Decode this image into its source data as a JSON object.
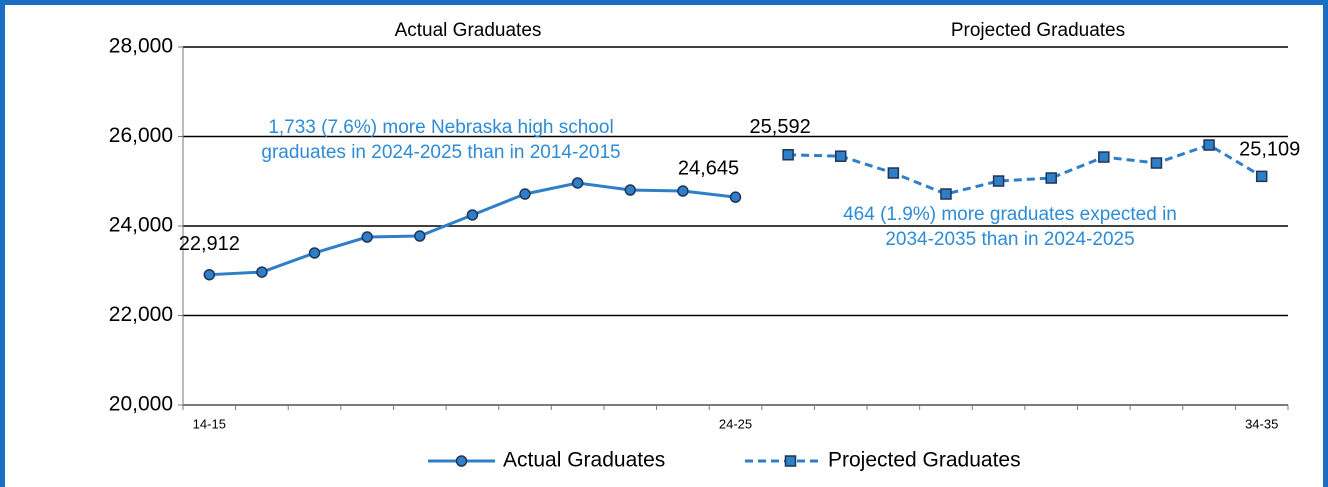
{
  "chart_data": {
    "type": "line",
    "categories": [
      "14-15",
      null,
      null,
      null,
      null,
      null,
      null,
      null,
      null,
      null,
      "24-25",
      null,
      null,
      null,
      null,
      null,
      null,
      null,
      null,
      null,
      "34-35"
    ],
    "series": [
      {
        "name": "Actual Graduates",
        "color": "#2f7fc8",
        "marker": "circle",
        "dashed": false,
        "values": [
          22912,
          22970,
          23397,
          23754,
          23776,
          24246,
          24715,
          24961,
          24804,
          24782,
          24645,
          null,
          null,
          null,
          null,
          null,
          null,
          null,
          null,
          null,
          null
        ],
        "value_labels": [
          "22,912",
          null,
          null,
          null,
          null,
          null,
          null,
          null,
          null,
          null,
          "24,645",
          null,
          null,
          null,
          null,
          null,
          null,
          null,
          null,
          null,
          null
        ]
      },
      {
        "name": "Projected Graduates",
        "color": "#2f7fc8",
        "marker": "square",
        "dashed": true,
        "values": [
          null,
          null,
          null,
          null,
          null,
          null,
          null,
          null,
          null,
          null,
          null,
          25592,
          25560,
          25184,
          24715,
          25005,
          25072,
          25541,
          25407,
          25810,
          25109
        ],
        "value_labels": [
          null,
          null,
          null,
          null,
          null,
          null,
          null,
          null,
          null,
          null,
          null,
          "25,592",
          null,
          null,
          null,
          null,
          null,
          null,
          null,
          null,
          "25,109"
        ]
      }
    ],
    "ylim": [
      20000,
      28000
    ],
    "yticks": [
      {
        "value": 20000,
        "label": "20,000"
      },
      {
        "value": 22000,
        "label": "22,000"
      },
      {
        "value": 24000,
        "label": "24,000"
      },
      {
        "value": 26000,
        "label": "26,000"
      },
      {
        "value": 28000,
        "label": "28,000"
      }
    ],
    "grid": true,
    "legend": "bottom",
    "section_labels": [
      "Actual Graduates",
      "Projected Graduates"
    ],
    "annotations": [
      [
        "1,733 (7.6%) more Nebraska high school",
        "graduates in 2024-2025 than in 2014-2015"
      ],
      [
        "464 (1.9%) more graduates expected in",
        "2034-2035 than in 2024-2025"
      ]
    ]
  }
}
